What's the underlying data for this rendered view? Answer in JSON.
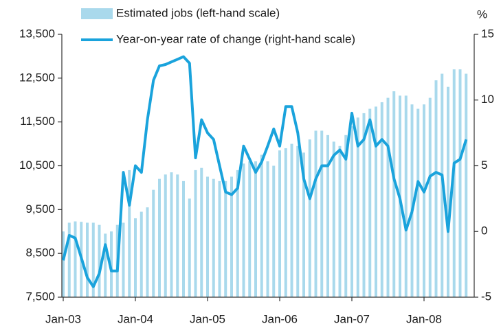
{
  "chart_data": {
    "type": "combo",
    "y2_label": "%",
    "categories": [
      "Jan-03",
      null,
      null,
      null,
      null,
      null,
      null,
      null,
      null,
      null,
      null,
      null,
      "Jan-04",
      null,
      null,
      null,
      null,
      null,
      null,
      null,
      null,
      null,
      null,
      null,
      "Jan-05",
      null,
      null,
      null,
      null,
      null,
      null,
      null,
      null,
      null,
      null,
      null,
      "Jan-06",
      null,
      null,
      null,
      null,
      null,
      null,
      null,
      null,
      null,
      null,
      null,
      "Jan-07",
      null,
      null,
      null,
      null,
      null,
      null,
      null,
      null,
      null,
      null,
      null,
      "Jan-08",
      null,
      null,
      null,
      null,
      null,
      null,
      null
    ],
    "series": [
      {
        "name": "Estimated jobs (left-hand scale)",
        "type": "bar",
        "color": "#a9d9ec",
        "values": [
          9000,
          9200,
          9230,
          9220,
          9200,
          9200,
          9150,
          8950,
          9000,
          9150,
          9200,
          10400,
          9300,
          9450,
          9550,
          9950,
          10200,
          10300,
          10350,
          10300,
          10150,
          9750,
          10400,
          10450,
          10250,
          10200,
          10150,
          10150,
          10250,
          10400,
          10550,
          10600,
          10600,
          10750,
          10600,
          10500,
          10850,
          10900,
          11000,
          10950,
          10800,
          11100,
          11300,
          11300,
          11200,
          11050,
          10950,
          11200,
          11400,
          11600,
          11700,
          11800,
          11850,
          11950,
          12050,
          12200,
          12100,
          12100,
          11900,
          11800,
          11900,
          12050,
          12450,
          12600,
          12300,
          12700,
          12700,
          12600
        ]
      },
      {
        "name": "Year-on-year rate of change (right-hand scale)",
        "type": "line",
        "axis": "y2",
        "color": "#1aa3dc",
        "values": [
          -2.2,
          -0.3,
          -0.5,
          -2,
          -3.5,
          -4.2,
          -3.2,
          -1,
          -3,
          -3,
          4.5,
          2,
          5,
          4.5,
          8.5,
          11.5,
          12.6,
          12.7,
          12.9,
          13.1,
          13.3,
          12.8,
          5.6,
          8.5,
          7.5,
          7,
          5,
          3,
          2.8,
          3.3,
          6.5,
          5.5,
          4.5,
          5.3,
          6.5,
          7.8,
          6.5,
          9.5,
          9.5,
          7.5,
          4,
          2.5,
          4,
          5,
          5,
          5.8,
          6.2,
          5.5,
          9,
          6.5,
          7,
          8.5,
          6.5,
          7,
          6.5,
          4,
          2.5,
          0.1,
          1.5,
          3.8,
          3,
          4.2,
          4.5,
          4.3,
          0,
          5.2,
          5.5,
          7
        ]
      }
    ],
    "ylim": [
      7500,
      13500
    ],
    "yticks": [
      {
        "value": 7500,
        "label": "7,500"
      },
      {
        "value": 8500,
        "label": "8,500"
      },
      {
        "value": 9500,
        "label": "9,500"
      },
      {
        "value": 10500,
        "label": "10,500"
      },
      {
        "value": 11500,
        "label": "11,500"
      },
      {
        "value": 12500,
        "label": "12,500"
      },
      {
        "value": 13500,
        "label": "13,500"
      }
    ],
    "y2lim": [
      -5,
      15
    ],
    "y2ticks": [
      -5,
      0,
      5,
      10,
      15
    ],
    "grid": false
  }
}
